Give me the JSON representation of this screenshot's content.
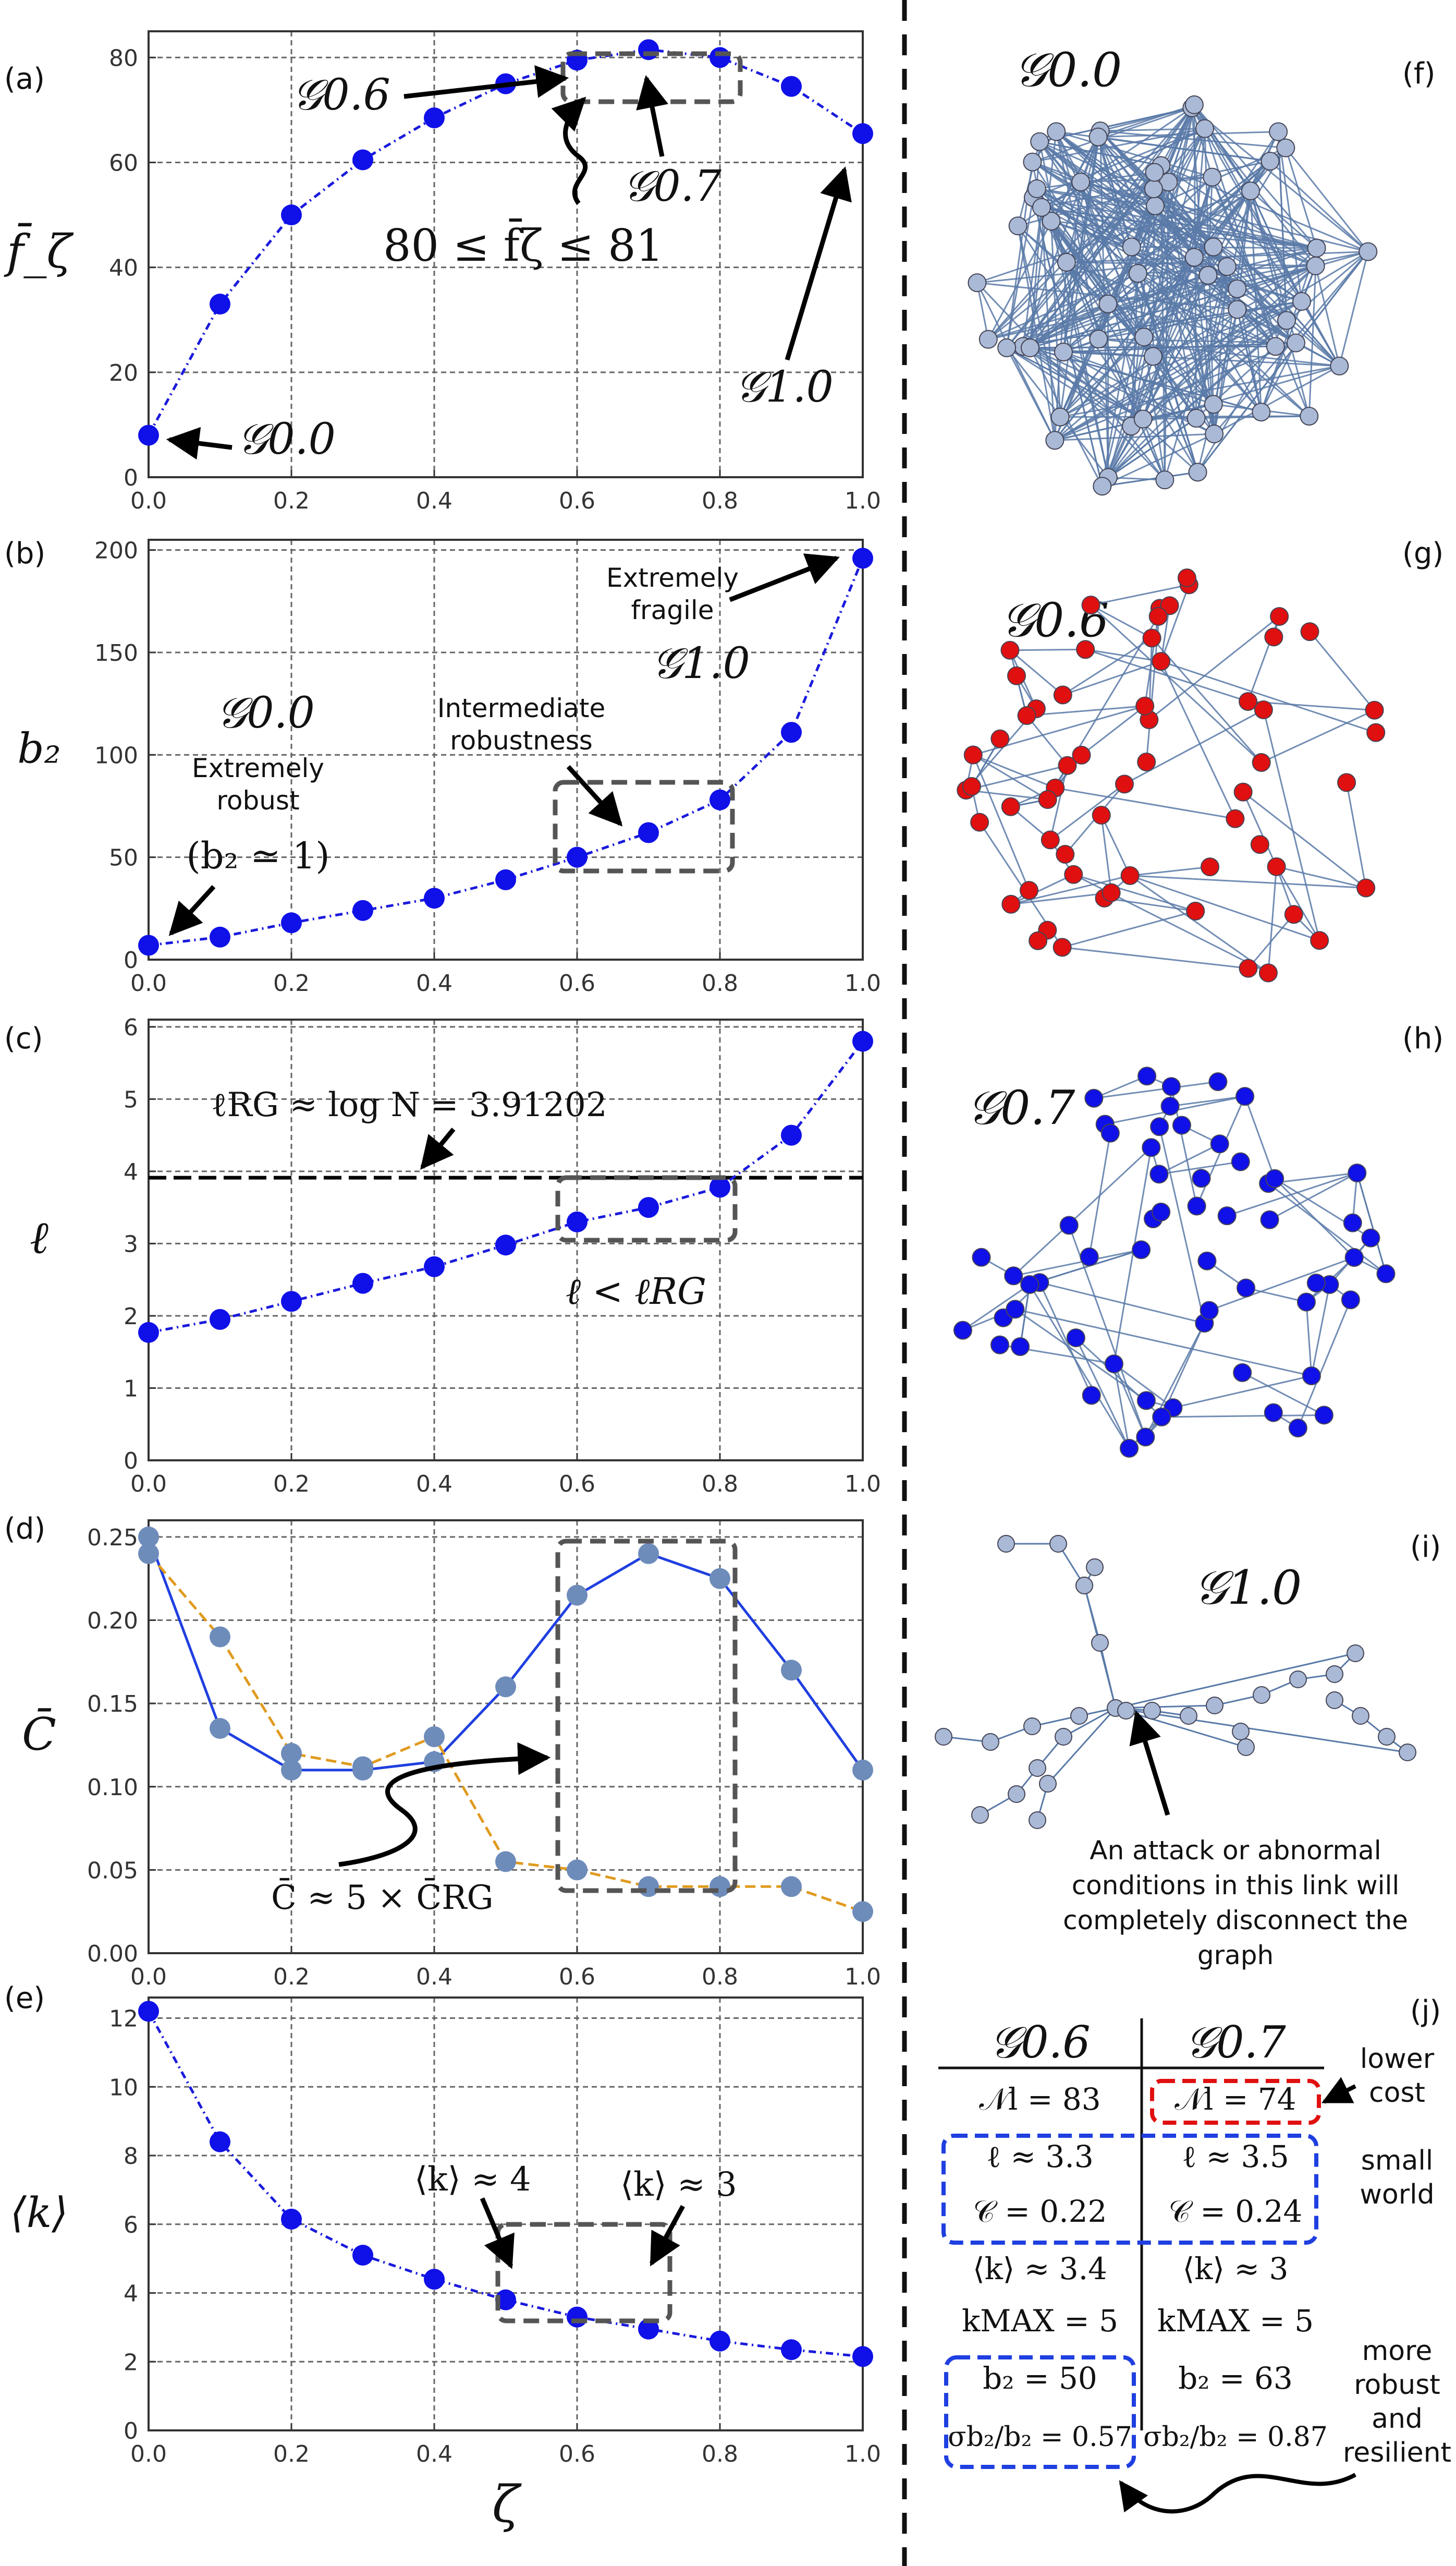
{
  "chart_data": [
    {
      "type": "line",
      "panel": "(a)",
      "title": "",
      "xlabel": "",
      "ylabel": "f̄_ζ",
      "xlim": [
        0,
        1
      ],
      "ylim": [
        0,
        85
      ],
      "xticks": [
        "0.0",
        "0.2",
        "0.4",
        "0.6",
        "0.8",
        "1.0"
      ],
      "yticks": [
        "0",
        "20",
        "40",
        "60",
        "80"
      ],
      "series": [
        {
          "name": "f̄_ζ",
          "color": "#1a1adc",
          "style": "dash-dot",
          "x": [
            0,
            0.1,
            0.2,
            0.3,
            0.4,
            0.5,
            0.6,
            0.7,
            0.8,
            0.9,
            1.0
          ],
          "y": [
            8,
            33,
            50,
            60.5,
            68.5,
            75,
            79.5,
            81.5,
            80,
            74.5,
            65.5
          ]
        }
      ],
      "annotations": {
        "g00": "𝒢0.0",
        "g06": "𝒢0.6",
        "g07": "𝒢0.7",
        "g10": "𝒢1.0",
        "range": "80 ≤ f̄ζ ≤ 81"
      }
    },
    {
      "type": "line",
      "panel": "(b)",
      "title": "",
      "xlabel": "",
      "ylabel": "b₂",
      "xlim": [
        0,
        1
      ],
      "ylim": [
        0,
        205
      ],
      "xticks": [
        "0.0",
        "0.2",
        "0.4",
        "0.6",
        "0.8",
        "1.0"
      ],
      "yticks": [
        "0",
        "50",
        "100",
        "150",
        "200"
      ],
      "series": [
        {
          "name": "b₂",
          "color": "#1a1adc",
          "style": "dash-dot",
          "x": [
            0,
            0.1,
            0.2,
            0.3,
            0.4,
            0.5,
            0.6,
            0.7,
            0.8,
            0.9,
            1.0
          ],
          "y": [
            7,
            11,
            18,
            24,
            30,
            39,
            50,
            62,
            78,
            111,
            196
          ]
        }
      ],
      "annotations": {
        "g00": "𝒢0.0",
        "robust_1": "Extremely",
        "robust_2": "robust",
        "robust_3": "(b₂ ≃ 1)",
        "inter_1": "Intermediate",
        "inter_2": "robustness",
        "fragile_1": "Extremely",
        "fragile_2": "fragile",
        "g10": "𝒢1.0"
      }
    },
    {
      "type": "line",
      "panel": "(c)",
      "title": "",
      "xlabel": "",
      "ylabel": "ℓ",
      "xlim": [
        0,
        1
      ],
      "ylim": [
        0,
        6.1
      ],
      "xticks": [
        "0.0",
        "0.2",
        "0.4",
        "0.6",
        "0.8",
        "1.0"
      ],
      "yticks": [
        "0",
        "1",
        "2",
        "3",
        "4",
        "5",
        "6"
      ],
      "series": [
        {
          "name": "ℓ",
          "color": "#1a1adc",
          "style": "dash-dot",
          "x": [
            0,
            0.1,
            0.2,
            0.3,
            0.4,
            0.5,
            0.6,
            0.7,
            0.8,
            0.9,
            1.0
          ],
          "y": [
            1.77,
            1.95,
            2.2,
            2.45,
            2.68,
            2.98,
            3.3,
            3.5,
            3.78,
            4.5,
            5.8
          ]
        }
      ],
      "reference_line": {
        "label": "ℓRG ≈ log N = 3.91202",
        "y": 3.91202
      },
      "annotations": {
        "lt": "ℓ < ℓRG"
      }
    },
    {
      "type": "line",
      "panel": "(d)",
      "title": "",
      "xlabel": "",
      "ylabel": "C̄",
      "xlim": [
        0,
        1
      ],
      "ylim": [
        0,
        0.26
      ],
      "xticks": [
        "0.0",
        "0.2",
        "0.4",
        "0.6",
        "0.8",
        "1.0"
      ],
      "yticks": [
        "0.00",
        "0.05",
        "0.10",
        "0.15",
        "0.20",
        "0.25"
      ],
      "series": [
        {
          "name": "C̄",
          "color": "#1f3fe0",
          "style": "solid",
          "x": [
            0,
            0.1,
            0.2,
            0.3,
            0.4,
            0.5,
            0.6,
            0.7,
            0.8,
            0.9,
            1.0
          ],
          "y": [
            0.25,
            0.135,
            0.11,
            0.11,
            0.115,
            0.16,
            0.215,
            0.24,
            0.225,
            0.17,
            0.11
          ]
        },
        {
          "name": "C̄RG",
          "color": "#e09a1e",
          "style": "dashed",
          "x": [
            0,
            0.1,
            0.2,
            0.3,
            0.4,
            0.5,
            0.6,
            0.7,
            0.8,
            0.9,
            1.0
          ],
          "y": [
            0.24,
            0.19,
            0.12,
            0.112,
            0.13,
            0.055,
            0.05,
            0.04,
            0.04,
            0.04,
            0.025
          ]
        }
      ],
      "annotations": {
        "approx": "C̄ ≈ 5 × C̄RG"
      }
    },
    {
      "type": "line",
      "panel": "(e)",
      "title": "",
      "xlabel": "ζ",
      "ylabel": "⟨k⟩",
      "xlim": [
        0,
        1
      ],
      "ylim": [
        0,
        12.6
      ],
      "xticks": [
        "0.0",
        "0.2",
        "0.4",
        "0.6",
        "0.8",
        "1.0"
      ],
      "yticks": [
        "0",
        "2",
        "4",
        "6",
        "8",
        "10",
        "12"
      ],
      "series": [
        {
          "name": "⟨k⟩",
          "color": "#1a1adc",
          "style": "dash-dot",
          "x": [
            0,
            0.1,
            0.2,
            0.3,
            0.4,
            0.5,
            0.6,
            0.7,
            0.8,
            0.9,
            1.0
          ],
          "y": [
            12.2,
            8.4,
            6.15,
            5.1,
            4.4,
            3.8,
            3.3,
            2.95,
            2.6,
            2.35,
            2.15
          ]
        }
      ],
      "annotations": {
        "k4": "⟨k⟩ ≈ 4",
        "k3": "⟨k⟩ ≈ 3"
      }
    }
  ],
  "panel_labels": {
    "a": "(a)",
    "b": "(b)",
    "c": "(c)",
    "d": "(d)",
    "e": "(e)",
    "f": "(f)",
    "g": "(g)",
    "h": "(h)",
    "i": "(i)",
    "j": "(j)"
  },
  "graphs": {
    "f_title": "𝒢0.0",
    "g_title": "𝒢0.6",
    "h_title": "𝒢0.7",
    "i_title": "𝒢1.0",
    "i_caption_1": "An attack or abnormal",
    "i_caption_2": "conditions in this link will",
    "i_caption_3": "completely disconnect the",
    "i_caption_4": "graph"
  },
  "table": {
    "col1_head": "𝒢0.6",
    "col2_head": "𝒢0.7",
    "c1_nl": "𝒩l = 83",
    "c2_nl": "𝒩l = 74",
    "c1_l": "ℓ ≈ 3.3",
    "c2_l": "ℓ ≈ 3.5",
    "c1_c": "𝒞 = 0.22",
    "c2_c": "𝒞 = 0.24",
    "c1_k": "⟨k⟩ ≈ 3.4",
    "c2_k": "⟨k⟩ ≈ 3",
    "c1_kmax": "kMAX = 5",
    "c2_kmax": "kMAX = 5",
    "c1_b2": "b₂ = 50",
    "c2_b2": "b₂ = 63",
    "c1_sig": "σb₂/b₂ = 0.57",
    "c2_sig": "σb₂/b₂ = 0.87",
    "note_cost_1": "lower",
    "note_cost_2": "cost",
    "note_sw_1": "small",
    "note_sw_2": "world",
    "note_rob_1": "more",
    "note_rob_2": "robust",
    "note_rob_3": "and",
    "note_rob_4": "resilient"
  },
  "colors": {
    "blue_line": "#1a1adc",
    "blue_marker": "#1010e8",
    "steel": "#6e8cba",
    "orange": "#e09a1e",
    "red_node": "#e01010",
    "grey_node": "#a9b9d6",
    "box": "#555555"
  }
}
